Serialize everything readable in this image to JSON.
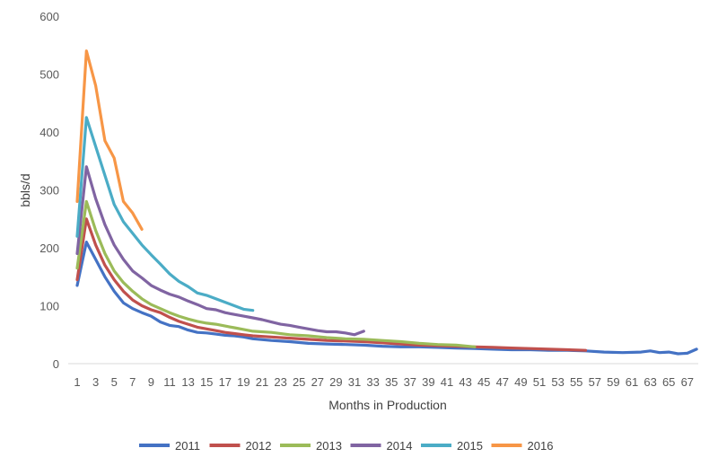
{
  "chart_data": {
    "type": "line",
    "title": "",
    "xlabel": "Months in Production",
    "ylabel": "bbls/d",
    "xlim": [
      1,
      68
    ],
    "ylim": [
      0,
      600
    ],
    "y_ticks": [
      0,
      100,
      200,
      300,
      400,
      500,
      600
    ],
    "x_ticks": [
      1,
      3,
      5,
      7,
      9,
      11,
      13,
      15,
      17,
      19,
      21,
      23,
      25,
      27,
      29,
      31,
      33,
      35,
      37,
      39,
      41,
      43,
      45,
      47,
      49,
      51,
      53,
      55,
      57,
      59,
      61,
      63,
      65,
      67
    ],
    "grid": false,
    "legend_position": "bottom",
    "series": [
      {
        "name": "2011",
        "color": "#4472c4",
        "x": [
          1,
          2,
          3,
          4,
          5,
          6,
          7,
          8,
          9,
          10,
          11,
          12,
          13,
          14,
          15,
          16,
          17,
          18,
          19,
          20,
          22,
          24,
          26,
          28,
          30,
          32,
          34,
          36,
          38,
          40,
          42,
          44,
          46,
          48,
          50,
          52,
          54,
          56,
          58,
          60,
          62,
          63,
          64,
          65,
          66,
          67,
          68
        ],
        "y": [
          135,
          210,
          180,
          150,
          125,
          105,
          95,
          88,
          82,
          72,
          66,
          64,
          58,
          54,
          53,
          51,
          49,
          48,
          46,
          43,
          40,
          38,
          35,
          34,
          33,
          32,
          30,
          29,
          29,
          28,
          27,
          26,
          25,
          24,
          24,
          23,
          23,
          22,
          20,
          19,
          20,
          22,
          19,
          20,
          17,
          18,
          25
        ]
      },
      {
        "name": "2012",
        "color": "#c0504d",
        "x": [
          1,
          2,
          3,
          4,
          5,
          6,
          7,
          8,
          9,
          10,
          11,
          12,
          13,
          14,
          15,
          16,
          17,
          18,
          19,
          20,
          22,
          24,
          26,
          28,
          30,
          32,
          34,
          36,
          38,
          40,
          42,
          44,
          46,
          48,
          50,
          52,
          54,
          56
        ],
        "y": [
          145,
          250,
          205,
          170,
          145,
          125,
          110,
          100,
          93,
          88,
          80,
          73,
          68,
          63,
          60,
          57,
          54,
          52,
          50,
          48,
          46,
          44,
          42,
          40,
          39,
          38,
          36,
          34,
          32,
          31,
          30,
          29,
          28,
          27,
          26,
          25,
          24,
          23
        ]
      },
      {
        "name": "2013",
        "color": "#9bbb59",
        "x": [
          1,
          2,
          3,
          4,
          5,
          6,
          7,
          8,
          9,
          10,
          11,
          12,
          13,
          14,
          15,
          16,
          17,
          18,
          19,
          20,
          22,
          24,
          26,
          28,
          30,
          32,
          34,
          36,
          38,
          40,
          42,
          44
        ],
        "y": [
          165,
          280,
          230,
          190,
          160,
          140,
          125,
          112,
          102,
          95,
          88,
          82,
          77,
          73,
          70,
          68,
          65,
          62,
          59,
          56,
          54,
          50,
          48,
          45,
          43,
          42,
          40,
          38,
          35,
          33,
          32,
          29
        ]
      },
      {
        "name": "2014",
        "color": "#8064a2",
        "x": [
          1,
          2,
          3,
          4,
          5,
          6,
          7,
          8,
          9,
          10,
          11,
          12,
          13,
          14,
          15,
          16,
          17,
          18,
          19,
          20,
          21,
          22,
          23,
          24,
          25,
          26,
          27,
          28,
          29,
          30,
          31,
          32
        ],
        "y": [
          190,
          340,
          285,
          240,
          205,
          180,
          160,
          148,
          135,
          127,
          120,
          115,
          108,
          102,
          95,
          93,
          88,
          85,
          82,
          79,
          76,
          72,
          68,
          66,
          63,
          60,
          57,
          55,
          55,
          53,
          50,
          56
        ]
      },
      {
        "name": "2015",
        "color": "#4bacc6",
        "x": [
          1,
          2,
          3,
          4,
          5,
          6,
          7,
          8,
          9,
          10,
          11,
          12,
          13,
          14,
          15,
          16,
          17,
          18,
          19,
          20
        ],
        "y": [
          220,
          425,
          375,
          325,
          275,
          245,
          225,
          205,
          188,
          172,
          155,
          142,
          133,
          122,
          118,
          112,
          106,
          100,
          94,
          92
        ]
      },
      {
        "name": "2016",
        "color": "#f79646",
        "x": [
          1,
          2,
          3,
          4,
          5,
          6,
          7,
          8
        ],
        "y": [
          280,
          540,
          480,
          385,
          355,
          280,
          260,
          232
        ]
      }
    ]
  }
}
